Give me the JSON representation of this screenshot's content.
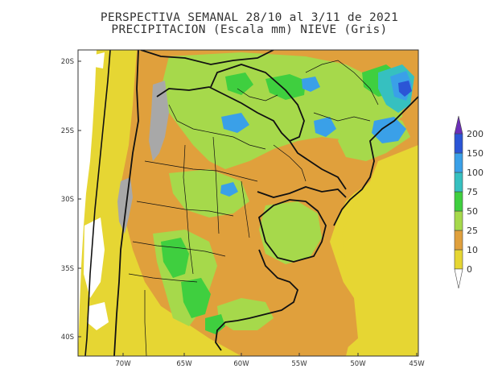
{
  "title": {
    "line1": "PERSPECTIVA SEMANAL  28/10 al 3/11 de 2021",
    "line2": "PRECIPITACION (Escala mm) NIEVE (Gris)"
  },
  "map": {
    "lat_labels": [
      "20S",
      "25S",
      "30S",
      "35S",
      "40S"
    ],
    "lon_labels": [
      "70W",
      "65W",
      "60W",
      "55W",
      "50W",
      "45W"
    ],
    "colors": {
      "ocean_pacific": "#ffffff",
      "land_0_10": "#e6d633",
      "mm_10_25": "#e0a03c",
      "mm_25_50": "#a6d94b",
      "mm_50_75": "#3fcf3f",
      "mm_75_100": "#36c0c0",
      "mm_100_150": "#3aa0e8",
      "mm_150_200": "#2b55d6",
      "mm_200_plus": "#6b2fb8",
      "snow": "#a8a8a8",
      "borders": "#111111"
    }
  },
  "colorbar": {
    "levels": [
      "0",
      "10",
      "25",
      "50",
      "75",
      "100",
      "150",
      "200"
    ],
    "colors": [
      "#e6d633",
      "#e0a03c",
      "#a6d94b",
      "#3fcf3f",
      "#36c0c0",
      "#3aa0e8",
      "#2b55d6",
      "#6b2fb8"
    ]
  }
}
